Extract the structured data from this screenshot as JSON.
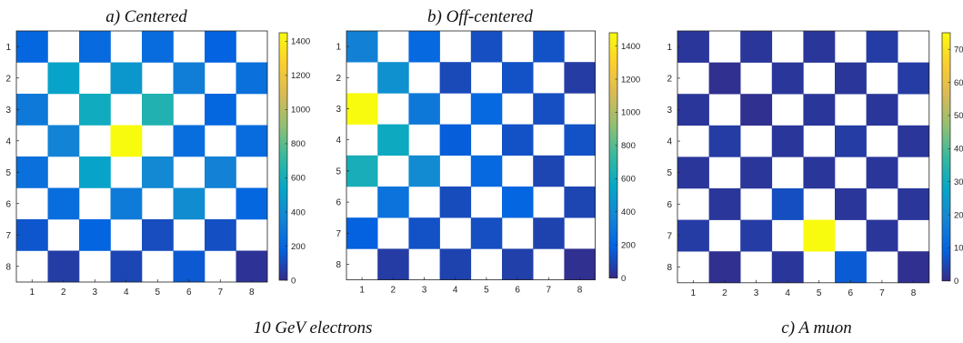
{
  "chart_data": [
    {
      "type": "heatmap",
      "panel_letter": "a)",
      "title": "Centered",
      "x": [
        1,
        2,
        3,
        4,
        5,
        6,
        7,
        8
      ],
      "y": [
        1,
        2,
        3,
        4,
        5,
        6,
        7,
        8
      ],
      "colorbar": {
        "ticks": [
          0,
          200,
          400,
          600,
          800,
          1000,
          1200,
          1400
        ],
        "range": [
          0,
          1450
        ]
      },
      "values": [
        [
          200,
          null,
          220,
          null,
          230,
          null,
          180,
          null
        ],
        [
          null,
          520,
          null,
          460,
          null,
          320,
          null,
          250
        ],
        [
          300,
          null,
          580,
          null,
          640,
          null,
          200,
          null
        ],
        [
          null,
          350,
          null,
          1450,
          null,
          240,
          null,
          230
        ],
        [
          250,
          null,
          520,
          null,
          380,
          null,
          340,
          null
        ],
        [
          null,
          240,
          null,
          310,
          null,
          400,
          null,
          200
        ],
        [
          140,
          null,
          190,
          null,
          110,
          null,
          120,
          null
        ],
        [
          null,
          60,
          null,
          90,
          null,
          150,
          null,
          30
        ]
      ]
    },
    {
      "type": "heatmap",
      "panel_letter": "b)",
      "title": "Off-centered",
      "x": [
        1,
        2,
        3,
        4,
        5,
        6,
        7,
        8
      ],
      "y": [
        1,
        2,
        3,
        4,
        5,
        6,
        7,
        8
      ],
      "colorbar": {
        "ticks": [
          0,
          200,
          400,
          600,
          800,
          1000,
          1200,
          1400
        ],
        "range": [
          0,
          1480
        ]
      },
      "values": [
        [
          350,
          null,
          220,
          null,
          120,
          null,
          130,
          null
        ],
        [
          null,
          430,
          null,
          100,
          null,
          130,
          null,
          60
        ],
        [
          1480,
          null,
          300,
          null,
          220,
          null,
          120,
          null
        ],
        [
          null,
          580,
          null,
          170,
          null,
          130,
          null,
          130
        ],
        [
          620,
          null,
          400,
          null,
          220,
          null,
          90,
          null
        ],
        [
          null,
          270,
          null,
          110,
          null,
          200,
          null,
          90
        ],
        [
          180,
          null,
          130,
          null,
          120,
          null,
          80,
          null
        ],
        [
          null,
          60,
          null,
          80,
          null,
          70,
          null,
          20
        ]
      ]
    },
    {
      "type": "heatmap",
      "panel_letter": "c)",
      "title": "A muon",
      "x": [
        1,
        2,
        3,
        4,
        5,
        6,
        7,
        8
      ],
      "y": [
        1,
        2,
        3,
        4,
        5,
        6,
        7,
        8
      ],
      "colorbar": {
        "ticks": [
          0,
          10,
          20,
          30,
          40,
          50,
          60,
          70
        ],
        "range": [
          0,
          75
        ]
      },
      "values": [
        [
          2,
          null,
          2,
          null,
          2,
          null,
          3,
          null
        ],
        [
          null,
          1,
          null,
          2,
          null,
          2,
          null,
          3
        ],
        [
          2,
          null,
          1,
          null,
          2,
          null,
          2,
          null
        ],
        [
          null,
          3,
          null,
          2,
          null,
          3,
          null,
          2
        ],
        [
          2,
          null,
          2,
          null,
          2,
          null,
          2,
          null
        ],
        [
          null,
          2,
          null,
          6,
          null,
          2,
          null,
          2
        ],
        [
          3,
          null,
          3,
          null,
          75,
          null,
          2,
          null
        ],
        [
          null,
          1,
          null,
          2,
          null,
          8,
          null,
          1
        ]
      ]
    }
  ],
  "caption_left": "10 GeV electrons",
  "caption_right": "c)  A muon"
}
